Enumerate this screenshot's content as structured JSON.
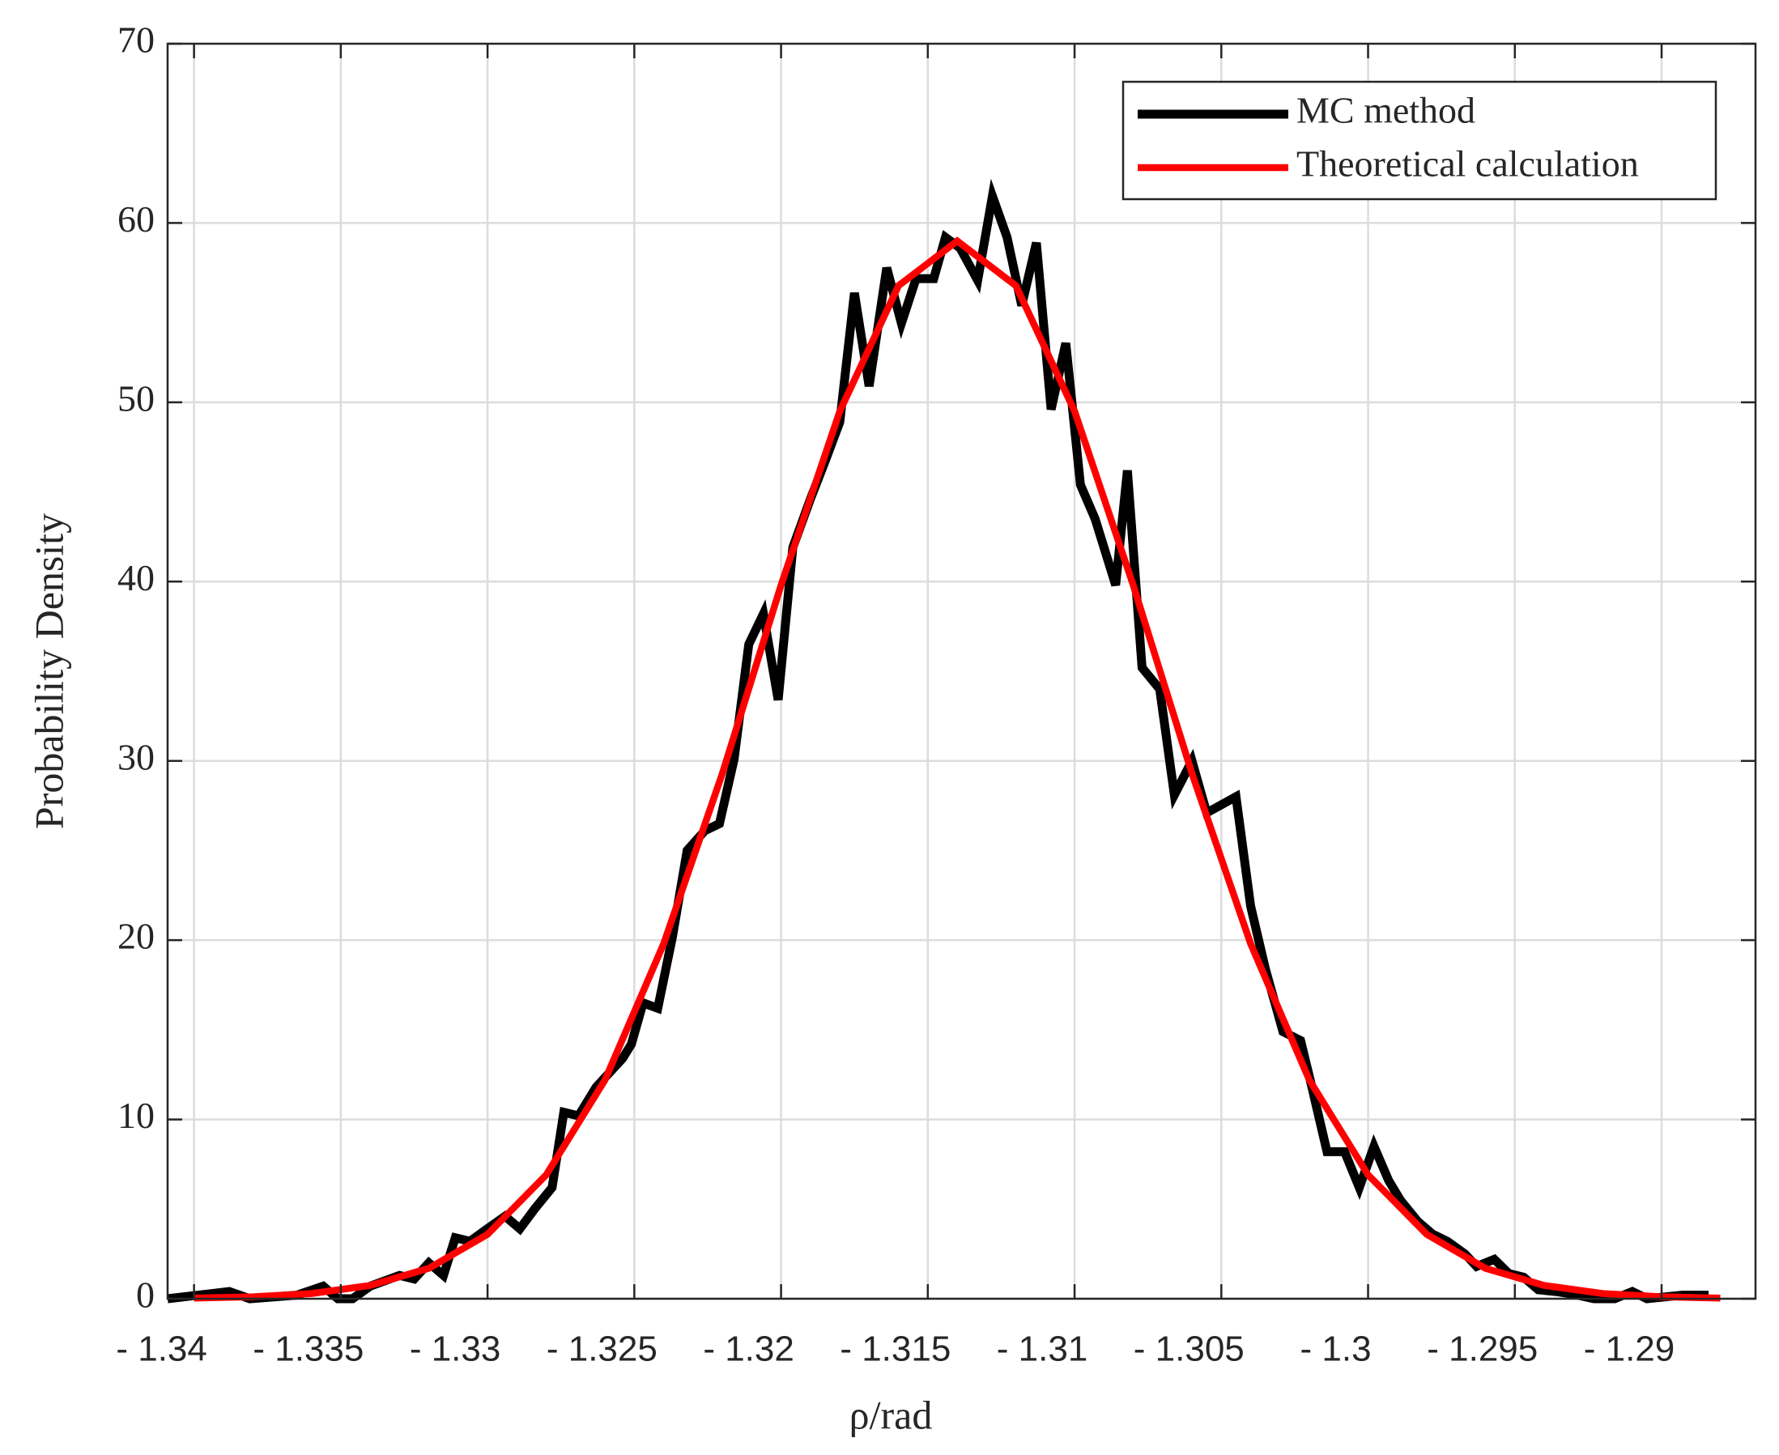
{
  "chart_data": {
    "type": "line",
    "x_label": "ρ/rad",
    "y_label": "Probability Density",
    "xlim": [
      -1.3409,
      -1.2868
    ],
    "ylim": [
      0,
      70
    ],
    "xticks": [
      {
        "value": -1.34,
        "label": "- 1.34"
      },
      {
        "value": -1.335,
        "label": "- 1.335"
      },
      {
        "value": -1.33,
        "label": "- 1.33"
      },
      {
        "value": -1.325,
        "label": "- 1.325"
      },
      {
        "value": -1.32,
        "label": "- 1.32"
      },
      {
        "value": -1.315,
        "label": "- 1.315"
      },
      {
        "value": -1.31,
        "label": "- 1.31"
      },
      {
        "value": -1.305,
        "label": "- 1.305"
      },
      {
        "value": -1.3,
        "label": "- 1.3"
      },
      {
        "value": -1.295,
        "label": "- 1.295"
      },
      {
        "value": -1.29,
        "label": "- 1.29"
      }
    ],
    "yticks": [
      0,
      10,
      20,
      30,
      40,
      50,
      60,
      70
    ],
    "grid": true,
    "legend": "upper right",
    "series": [
      {
        "name": "MC method",
        "color": "#000000",
        "x": [
          -1.3409,
          -1.3388,
          -1.3381,
          -1.3365,
          -1.3356,
          -1.3351,
          -1.3346,
          -1.334,
          -1.333,
          -1.3325,
          -1.332,
          -1.3315,
          -1.3311,
          -1.3306,
          -1.3301,
          -1.3294,
          -1.3289,
          -1.3284,
          -1.3278,
          -1.3274,
          -1.3269,
          -1.3263,
          -1.3254,
          -1.3251,
          -1.3247,
          -1.3242,
          -1.3237,
          -1.3232,
          -1.3226,
          -1.3221,
          -1.3216,
          -1.3211,
          -1.3206,
          -1.3201,
          -1.3196,
          -1.319,
          -1.3185,
          -1.318,
          -1.3175,
          -1.317,
          -1.3164,
          -1.3159,
          -1.3154,
          -1.3148,
          -1.3144,
          -1.3139,
          -1.3133,
          -1.3128,
          -1.3123,
          -1.3118,
          -1.3113,
          -1.3108,
          -1.3103,
          -1.3098,
          -1.3093,
          -1.3086,
          -1.3082,
          -1.3077,
          -1.3071,
          -1.3066,
          -1.306,
          -1.3055,
          -1.3045,
          -1.304,
          -1.3035,
          -1.3029,
          -1.3023,
          -1.3019,
          -1.3014,
          -1.3008,
          -1.3003,
          -1.2998,
          -1.2993,
          -1.2989,
          -1.2983,
          -1.2978,
          -1.2973,
          -1.2967,
          -1.2963,
          -1.2957,
          -1.2952,
          -1.2947,
          -1.2942,
          -1.2936,
          -1.293,
          -1.2923,
          -1.2916,
          -1.291,
          -1.2905,
          -1.2899,
          -1.2893,
          -1.2884
        ],
        "values": [
          0,
          0.4,
          0,
          0.2,
          0.7,
          0,
          0,
          0.7,
          1.3,
          1.1,
          2,
          1.3,
          3.4,
          3.2,
          3.8,
          4.6,
          3.9,
          5,
          6.2,
          10.4,
          10.2,
          11.8,
          13.4,
          14.2,
          16.5,
          16.2,
          20.2,
          25,
          26.1,
          26.5,
          30.1,
          36.5,
          38.2,
          33.4,
          41.9,
          44.6,
          46.7,
          48.9,
          56.1,
          50.9,
          57.5,
          54.4,
          56.9,
          56.9,
          59.2,
          58.6,
          56.8,
          61.5,
          59.2,
          55.4,
          58.9,
          49.6,
          53.3,
          45.4,
          43.5,
          39.8,
          46.2,
          35.2,
          34,
          28.1,
          30,
          27.1,
          28,
          21.9,
          18.4,
          14.9,
          14.4,
          11.7,
          8.2,
          8.2,
          6.2,
          8.5,
          6.6,
          5.5,
          4.3,
          3.6,
          3.2,
          2.5,
          1.8,
          2.2,
          1.4,
          1.2,
          0.5,
          0.4,
          0.25,
          0,
          0,
          0.4,
          0,
          0.1,
          0.2,
          0.2
        ]
      },
      {
        "name": "Theoretical calculation",
        "color": "#ff0000",
        "x": [
          -1.34,
          -1.338,
          -1.336,
          -1.334,
          -1.332,
          -1.33,
          -1.328,
          -1.326,
          -1.324,
          -1.322,
          -1.32,
          -1.318,
          -1.316,
          -1.314,
          -1.312,
          -1.31,
          -1.308,
          -1.306,
          -1.304,
          -1.302,
          -1.3,
          -1.298,
          -1.296,
          -1.294,
          -1.292,
          -1.29,
          -1.288
        ],
        "values": [
          0.036,
          0.11,
          0.29,
          0.74,
          1.7,
          3.59,
          6.91,
          12.2,
          19.8,
          29.3,
          39.8,
          49.5,
          56.5,
          59,
          56.5,
          49.5,
          39.8,
          29.3,
          19.8,
          12.2,
          6.91,
          3.59,
          1.7,
          0.74,
          0.29,
          0.11,
          0.036
        ]
      }
    ]
  }
}
